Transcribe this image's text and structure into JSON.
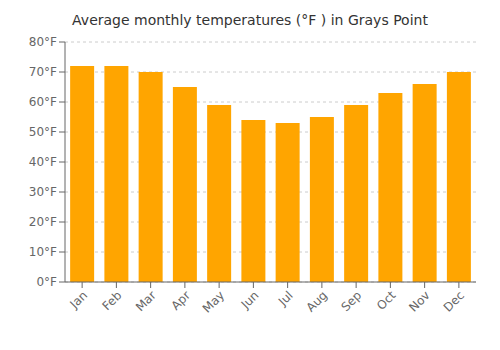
{
  "chart_data": {
    "type": "bar",
    "title": "Average monthly temperatures (°F ) in Grays Point",
    "categories": [
      "Jan",
      "Feb",
      "Mar",
      "Apr",
      "May",
      "Jun",
      "Jul",
      "Aug",
      "Sep",
      "Oct",
      "Nov",
      "Dec"
    ],
    "values": [
      72,
      72,
      70,
      65,
      59,
      54,
      53,
      55,
      59,
      63,
      66,
      70
    ],
    "color": "#FFA500",
    "ylim": [
      0,
      80
    ],
    "yticks": [
      {
        "value": 0,
        "label": "0°F"
      },
      {
        "value": 10,
        "label": "10°F"
      },
      {
        "value": 20,
        "label": "20°F"
      },
      {
        "value": 30,
        "label": "30°F"
      },
      {
        "value": 40,
        "label": "40°F"
      },
      {
        "value": 50,
        "label": "50°F"
      },
      {
        "value": 60,
        "label": "60°F"
      },
      {
        "value": 70,
        "label": "70°F"
      },
      {
        "value": 80,
        "label": "80°F"
      }
    ],
    "grid": true
  }
}
